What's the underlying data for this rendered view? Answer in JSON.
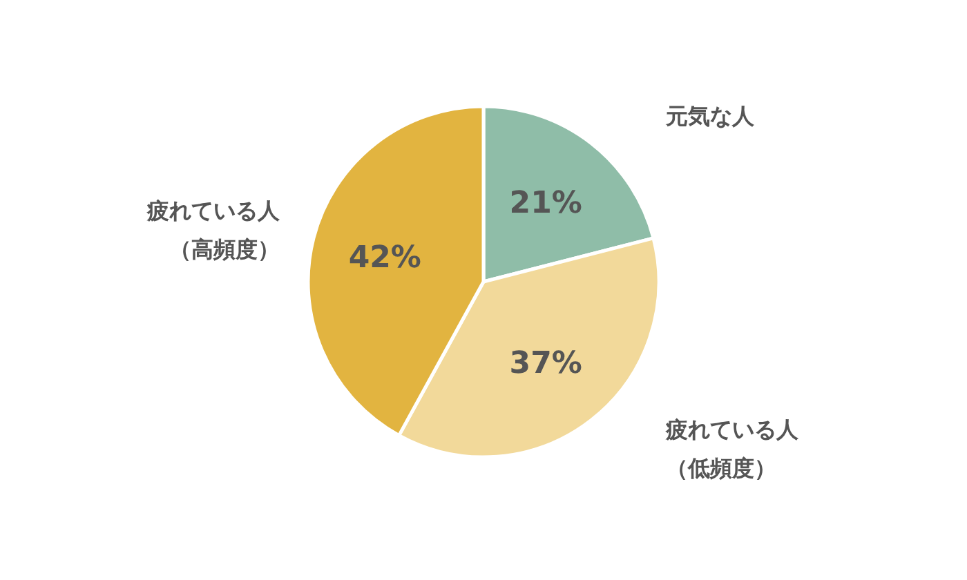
{
  "chart_data": {
    "type": "pie",
    "categories": [
      "元気な人",
      "疲れている人（低頻度）",
      "疲れている人（高頻度）"
    ],
    "values": [
      21,
      37,
      42
    ],
    "colors": [
      "#8fbda8",
      "#f2d99a",
      "#e2b440"
    ],
    "value_labels": [
      "21%",
      "37%",
      "42%"
    ]
  }
}
